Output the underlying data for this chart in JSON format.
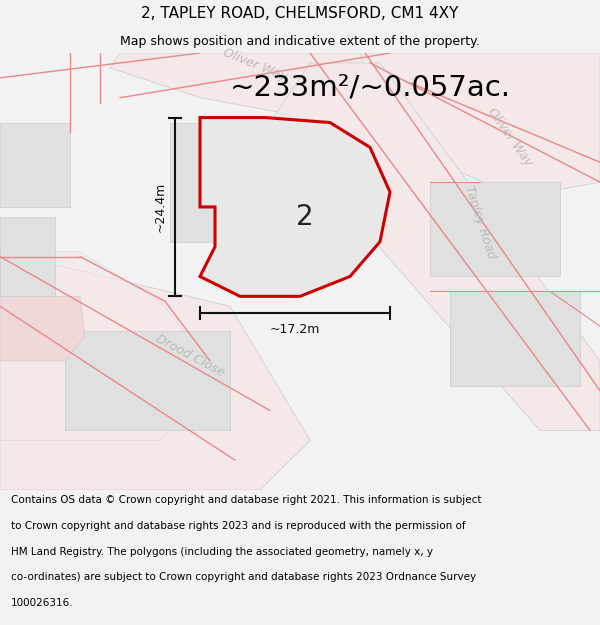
{
  "title": "2, TAPLEY ROAD, CHELMSFORD, CM1 4XY",
  "subtitle": "Map shows position and indicative extent of the property.",
  "area_text": "~233m²/~0.057ac.",
  "dim_width": "~17.2m",
  "dim_height": "~24.4m",
  "plot_label": "2",
  "bg_color": "#f2f2f2",
  "map_bg": "#f9f9f9",
  "road_fill": "#f5e8e8",
  "road_line": "#e88888",
  "plot_fill": "#e8e8e8",
  "plot_border": "#cc0000",
  "building_fill": "#e0e0e0",
  "building_edge": "#cccccc",
  "dim_color": "#111111",
  "label_color": "#222222",
  "street_label_color": "#bbbbbb",
  "title_fontsize": 11,
  "subtitle_fontsize": 9,
  "area_fontsize": 22,
  "footer_fontsize": 7.5,
  "footer_lines": [
    "Contains OS data © Crown copyright and database right 2021. This information is subject",
    "to Crown copyright and database rights 2023 and is reproduced with the permission of",
    "HM Land Registry. The polygons (including the associated geometry, namely x, y",
    "co-ordinates) are subject to Crown copyright and database rights 2023 Ordnance Survey",
    "100026316."
  ]
}
